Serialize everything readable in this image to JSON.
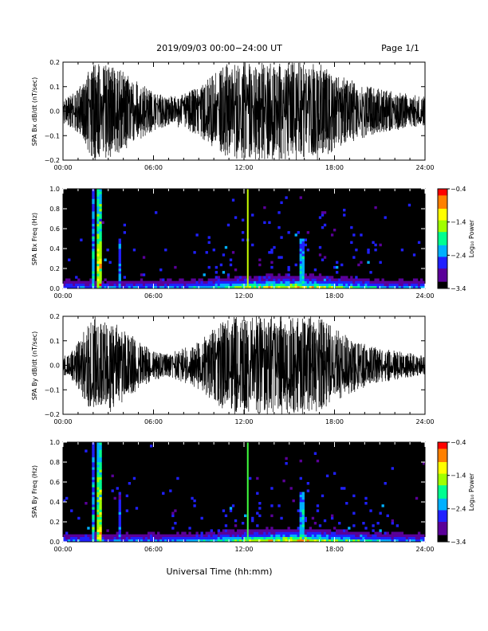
{
  "header": {
    "title": "2019/09/03  00:00−24:00 UT",
    "page": "Page 1/1"
  },
  "x_axis_label": "Universal Time (hh:mm)",
  "colors": {
    "background": "#ffffff",
    "trace": "#000000",
    "spectrogram_bg": "#000000",
    "colormap": [
      "#000000",
      "#5a0099",
      "#2020ff",
      "#00b0ff",
      "#00ff90",
      "#a0ff00",
      "#ffff00",
      "#ff8000",
      "#ff0000"
    ]
  },
  "chart_data": [
    {
      "type": "line",
      "ylabel": "SPA Bx dB/dt (nT/sec)",
      "xlim": [
        0,
        24
      ],
      "ylim": [
        -0.2,
        0.2
      ],
      "xticks": [
        "00:00",
        "06:00",
        "12:00",
        "18:00",
        "24:00"
      ],
      "yticks": [
        "−0.2",
        "−0.1",
        "0.0",
        "0.1",
        "0.2"
      ],
      "envelope": [
        {
          "t": 0.0,
          "amp": 0.06
        },
        {
          "t": 0.5,
          "amp": 0.07
        },
        {
          "t": 1.0,
          "amp": 0.09
        },
        {
          "t": 1.5,
          "amp": 0.14
        },
        {
          "t": 2.0,
          "amp": 0.2
        },
        {
          "t": 3.0,
          "amp": 0.2
        },
        {
          "t": 4.0,
          "amp": 0.16
        },
        {
          "t": 5.0,
          "amp": 0.12
        },
        {
          "t": 6.0,
          "amp": 0.08
        },
        {
          "t": 7.0,
          "amp": 0.06
        },
        {
          "t": 8.0,
          "amp": 0.07
        },
        {
          "t": 9.0,
          "amp": 0.1
        },
        {
          "t": 10.0,
          "amp": 0.15
        },
        {
          "t": 11.0,
          "amp": 0.2
        },
        {
          "t": 17.0,
          "amp": 0.2
        },
        {
          "t": 18.0,
          "amp": 0.16
        },
        {
          "t": 19.0,
          "amp": 0.13
        },
        {
          "t": 20.0,
          "amp": 0.11
        },
        {
          "t": 21.0,
          "amp": 0.09
        },
        {
          "t": 22.0,
          "amp": 0.08
        },
        {
          "t": 23.0,
          "amp": 0.07
        },
        {
          "t": 24.0,
          "amp": 0.06
        }
      ]
    },
    {
      "type": "heatmap",
      "ylabel": "SPA Bx Freq (Hz)",
      "xlim": [
        0,
        24
      ],
      "ylim": [
        0.0,
        1.0
      ],
      "xticks": [
        "00:00",
        "06:00",
        "12:00",
        "18:00",
        "24:00"
      ],
      "yticks": [
        "0.0",
        "0.2",
        "0.4",
        "0.6",
        "0.8",
        "1.0"
      ],
      "colorbar_label": "Log₁₀ Power",
      "colorbar_ticks": [
        "−0.4",
        "−1.4",
        "−2.4",
        "−3.4"
      ],
      "zlim": [
        -3.4,
        -0.4
      ],
      "vertical_line": {
        "t": 12.25,
        "color": "#c8ff00"
      },
      "bursts": [
        {
          "t": 2.0,
          "level": 0.6,
          "height": 1.0
        },
        {
          "t": 2.4,
          "level": 0.85,
          "height": 1.0
        },
        {
          "t": 3.8,
          "level": 0.4,
          "height": 0.5
        },
        {
          "t": 15.8,
          "level": 0.5,
          "height": 0.5
        }
      ],
      "lowband_peak_t": 15.0
    },
    {
      "type": "line",
      "ylabel": "SPA By dB/dt (nT/sec)",
      "xlim": [
        0,
        24
      ],
      "ylim": [
        -0.2,
        0.2
      ],
      "xticks": [
        "00:00",
        "06:00",
        "12:00",
        "18:00",
        "24:00"
      ],
      "yticks": [
        "−0.2",
        "−0.1",
        "0.0",
        "0.1",
        "0.2"
      ],
      "envelope": [
        {
          "t": 0.0,
          "amp": 0.04
        },
        {
          "t": 0.5,
          "amp": 0.05
        },
        {
          "t": 1.0,
          "amp": 0.1
        },
        {
          "t": 1.5,
          "amp": 0.15
        },
        {
          "t": 2.0,
          "amp": 0.2
        },
        {
          "t": 3.0,
          "amp": 0.2
        },
        {
          "t": 4.0,
          "amp": 0.15
        },
        {
          "t": 5.0,
          "amp": 0.1
        },
        {
          "t": 6.0,
          "amp": 0.06
        },
        {
          "t": 7.0,
          "amp": 0.05
        },
        {
          "t": 8.0,
          "amp": 0.07
        },
        {
          "t": 9.0,
          "amp": 0.1
        },
        {
          "t": 10.0,
          "amp": 0.15
        },
        {
          "t": 11.0,
          "amp": 0.2
        },
        {
          "t": 17.0,
          "amp": 0.2
        },
        {
          "t": 18.0,
          "amp": 0.15
        },
        {
          "t": 19.0,
          "amp": 0.12
        },
        {
          "t": 20.0,
          "amp": 0.09
        },
        {
          "t": 21.0,
          "amp": 0.07
        },
        {
          "t": 22.0,
          "amp": 0.06
        },
        {
          "t": 23.0,
          "amp": 0.05
        },
        {
          "t": 24.0,
          "amp": 0.04
        }
      ]
    },
    {
      "type": "heatmap",
      "ylabel": "SPA By Freq (Hz)",
      "xlim": [
        0,
        24
      ],
      "ylim": [
        0.0,
        1.0
      ],
      "xticks": [
        "00:00",
        "06:00",
        "12:00",
        "18:00",
        "24:00"
      ],
      "yticks": [
        "0.0",
        "0.2",
        "0.4",
        "0.6",
        "0.8",
        "1.0"
      ],
      "colorbar_label": "Log₁₀ Power",
      "colorbar_ticks": [
        "−0.4",
        "−1.4",
        "−2.4",
        "−3.4"
      ],
      "zlim": [
        -3.4,
        -0.4
      ],
      "vertical_line": {
        "t": 12.25,
        "color": "#40ff40"
      },
      "bursts": [
        {
          "t": 2.0,
          "level": 0.55,
          "height": 1.0
        },
        {
          "t": 2.4,
          "level": 0.85,
          "height": 1.0
        },
        {
          "t": 3.8,
          "level": 0.35,
          "height": 0.5
        },
        {
          "t": 15.8,
          "level": 0.5,
          "height": 0.5
        }
      ],
      "lowband_peak_t": 15.0
    }
  ]
}
